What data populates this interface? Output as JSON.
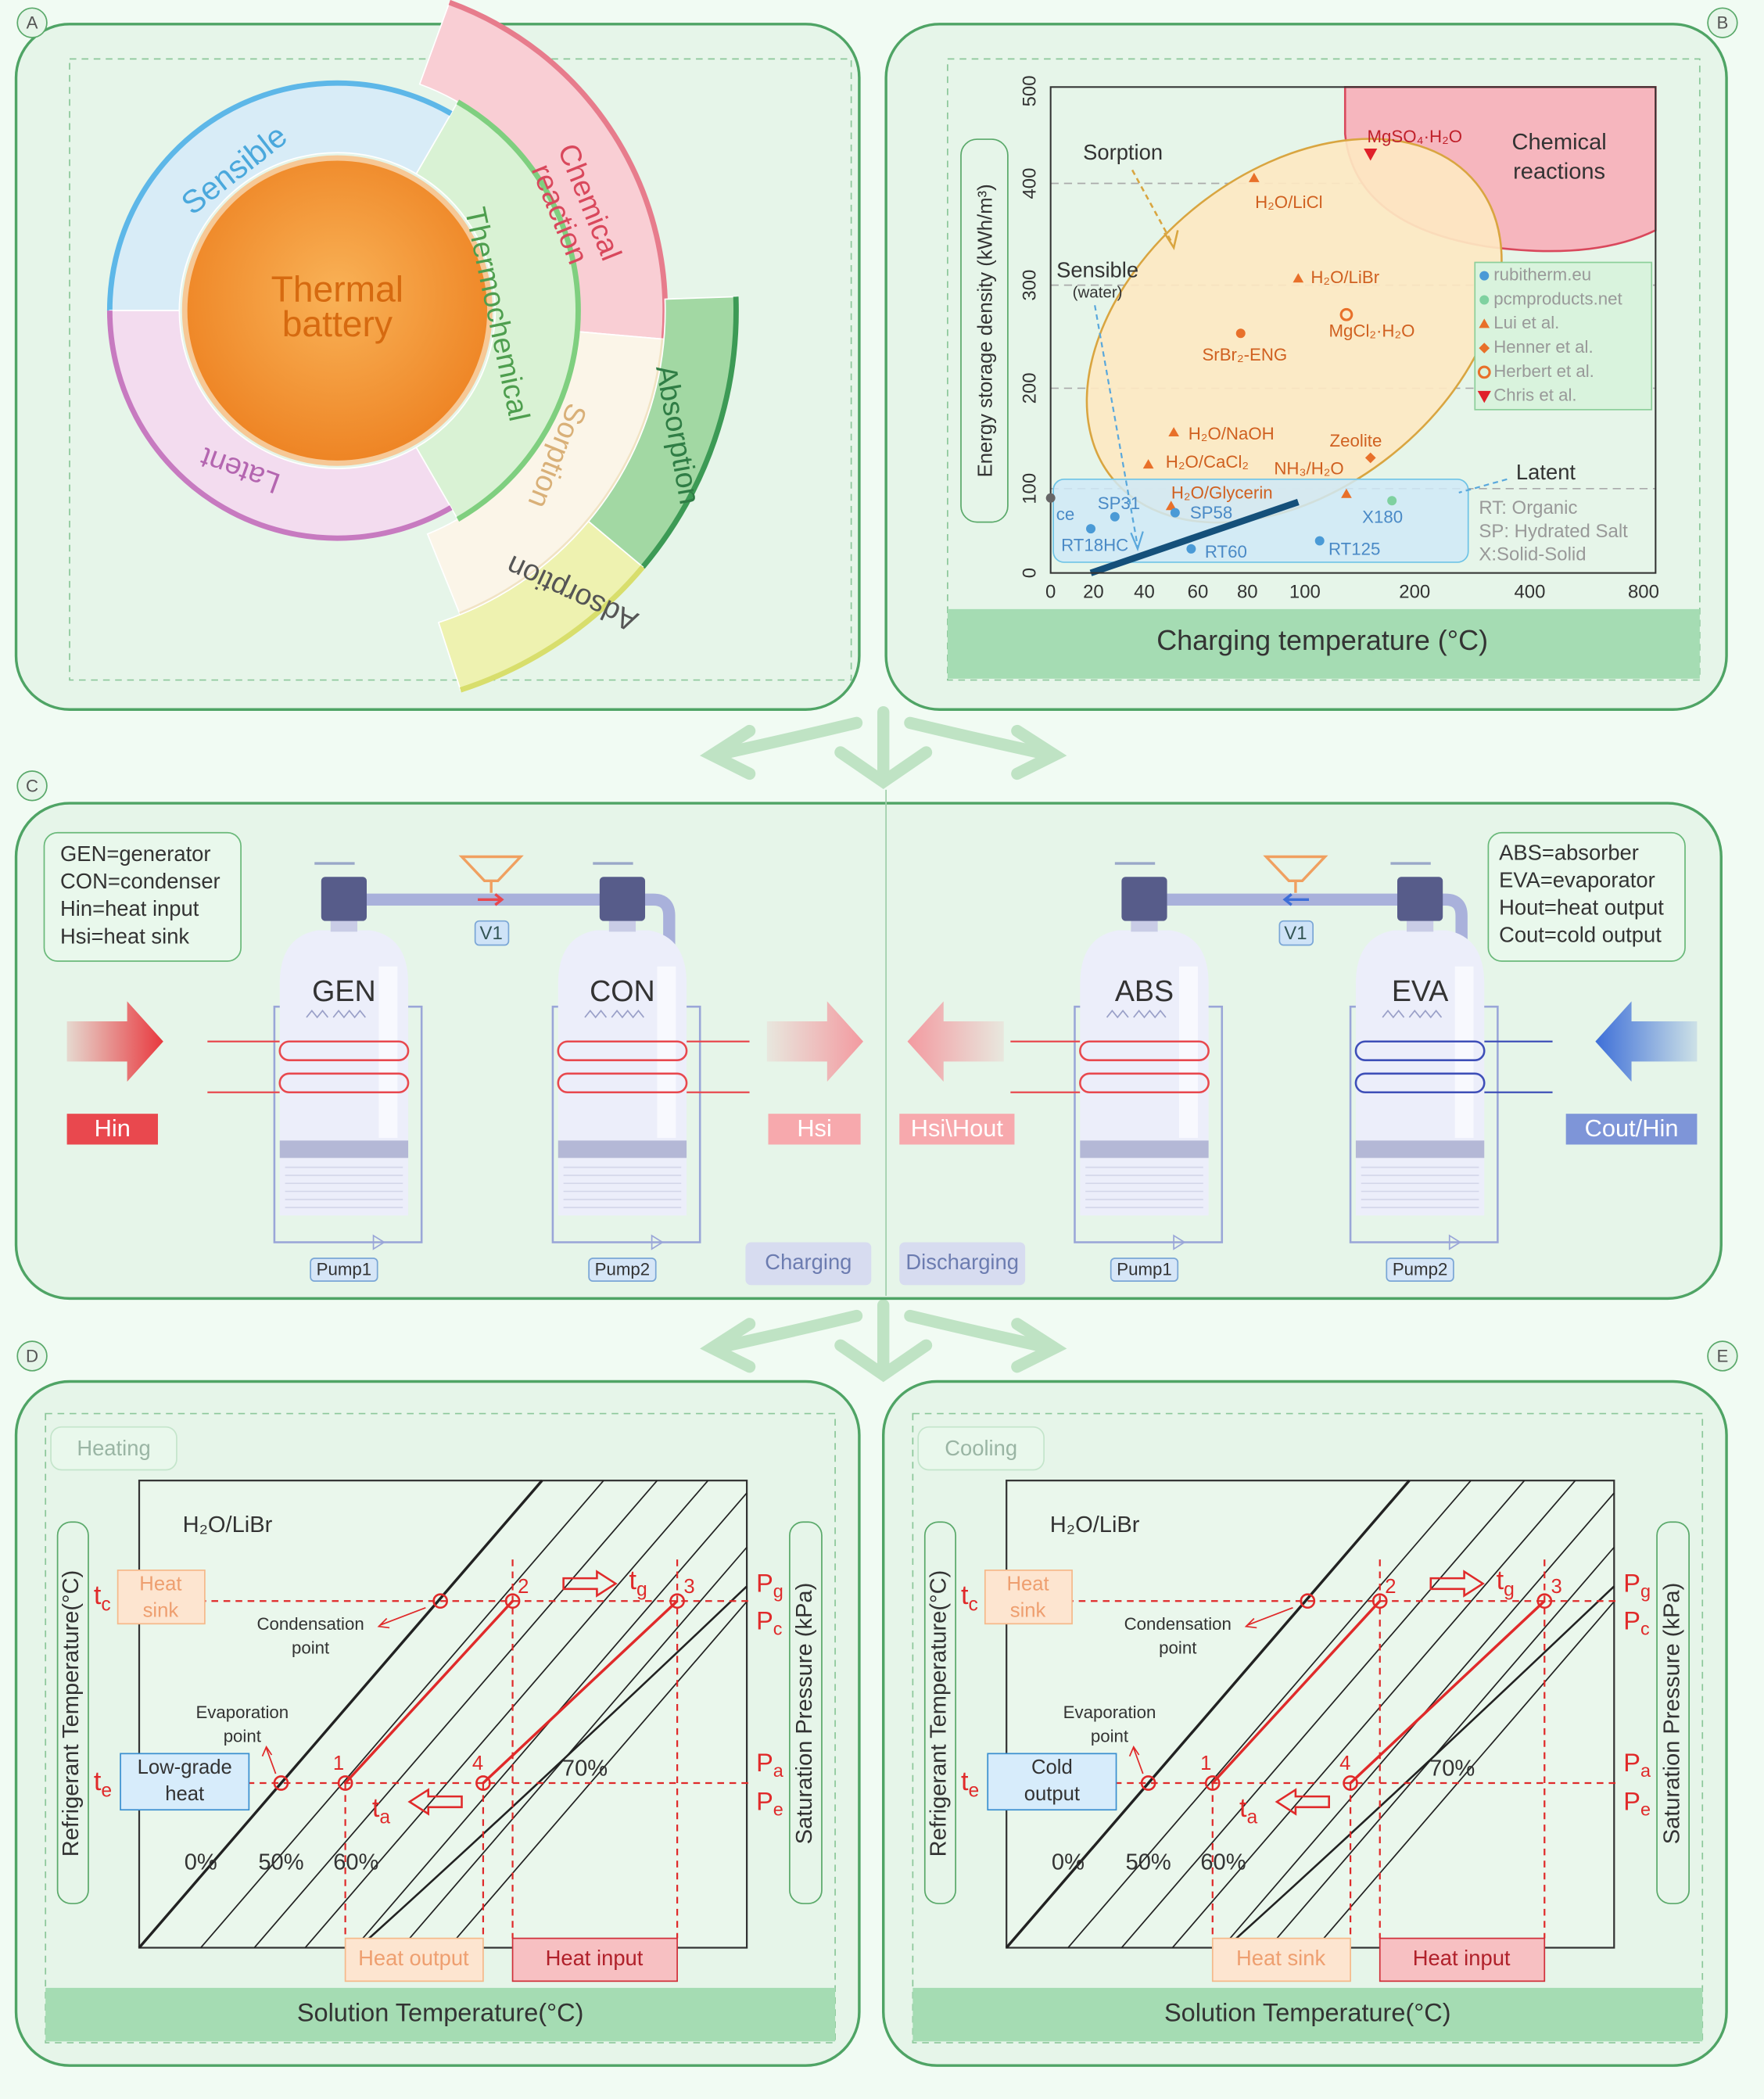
{
  "panels": {
    "a": {
      "letter": "A",
      "center": [
        "Thermal",
        "battery"
      ],
      "sensible": "Sensible",
      "latent": "Latent",
      "thermochemical": "Thermochemical",
      "chemical": [
        "Chemical",
        "reaction"
      ],
      "sorption": "Sorption",
      "absorption": "Absorption",
      "adsorption": "Adsorption"
    },
    "b": {
      "letter": "B",
      "y_label": "Energy storage density (kWh/m³)",
      "x_label": "Charging temperature (°C)",
      "yticks": [
        "0",
        "100",
        "200",
        "300",
        "400",
        "500"
      ],
      "xticks": [
        "0",
        "20",
        "40",
        "60",
        "80",
        "100",
        "200",
        "400",
        "800"
      ],
      "chemical": [
        "Chemical",
        "reactions"
      ],
      "sorption": "Sorption",
      "sensible": [
        "Sensible",
        "(water)"
      ],
      "latent": "Latent",
      "points": [
        "MgSO₄·H₂O",
        "H₂O/LiCl",
        "H₂O/LiBr",
        "MgCl₂·H₂O",
        "SrBr₂-ENG",
        "H₂O/NaOH",
        "H₂O/CaCl₂",
        "Zeolite",
        "NH₃/H₂O",
        "H₂O/Glycerin",
        "SP31",
        "SP58",
        "RT18HC",
        "RT60",
        "RT125",
        "X180",
        "ce"
      ],
      "legend": [
        "rubitherm.eu",
        "pcmproducts.net",
        "Lui et al.",
        "Henner et al.",
        "Herbert et al.",
        "Chris et al."
      ],
      "notes": [
        "RT: Organic",
        "SP: Hydrated Salt",
        "X:Solid-Solid"
      ]
    },
    "c": {
      "letter": "C",
      "left_legend": [
        "GEN=generator",
        "CON=condenser",
        "Hin=heat input",
        "Hsi=heat sink"
      ],
      "right_legend": [
        "ABS=absorber",
        "EVA=evaporator",
        "Hout=heat output",
        "Cout=cold output"
      ],
      "tanks": [
        "GEN",
        "CON",
        "ABS",
        "EVA"
      ],
      "valves": [
        "V1",
        "V1"
      ],
      "pumps": [
        "Pump1",
        "Pump2",
        "Pump1",
        "Pump2"
      ],
      "flows": [
        "Hin",
        "Hsi",
        "Hsi\\Hout",
        "Cout/Hin"
      ],
      "modes": [
        "Charging",
        "Discharging"
      ]
    },
    "d": {
      "letter": "D",
      "mode": "Heating",
      "pair": "H₂O/LiBr",
      "y_label": "Refrigerant Temperature(°C)",
      "y2_label": "Saturation Pressure (kPa)",
      "x_label": "Solution Temperature(°C)",
      "temps": [
        "tc",
        "te",
        "tg",
        "ta"
      ],
      "pressures": [
        "Pg",
        "Pc",
        "Pa",
        "Pe"
      ],
      "states": [
        "1",
        "2",
        "3",
        "4"
      ],
      "concentrations": [
        "0%",
        "50%",
        "60%",
        "70%"
      ],
      "condensation": [
        "Condensation",
        "point"
      ],
      "evaporation": [
        "Evaporation",
        "point"
      ],
      "upper_source": [
        "Heat",
        "sink"
      ],
      "lower_source": [
        "Low-grade",
        "heat"
      ],
      "outputs": [
        "Heat output",
        "Heat input"
      ]
    },
    "e": {
      "letter": "E",
      "mode": "Cooling",
      "pair": "H₂O/LiBr",
      "y_label": "Refrigerant Temperature(°C)",
      "y2_label": "Saturation Pressure (kPa)",
      "x_label": "Solution Temperature(°C)",
      "temps": [
        "tc",
        "te",
        "tg",
        "ta"
      ],
      "pressures": [
        "Pg",
        "Pc",
        "Pa",
        "Pe"
      ],
      "states": [
        "1",
        "2",
        "3",
        "4"
      ],
      "concentrations": [
        "0%",
        "50%",
        "60%",
        "70%"
      ],
      "condensation": [
        "Condensation",
        "point"
      ],
      "evaporation": [
        "Evaporation",
        "point"
      ],
      "upper_source": [
        "Heat",
        "sink"
      ],
      "lower_source": [
        "Cold",
        "output"
      ],
      "outputs": [
        "Heat sink",
        "Heat input"
      ]
    }
  }
}
